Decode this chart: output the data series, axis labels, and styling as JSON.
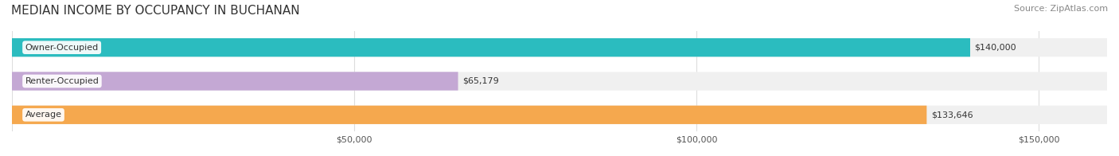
{
  "title": "MEDIAN INCOME BY OCCUPANCY IN BUCHANAN",
  "source": "Source: ZipAtlas.com",
  "categories": [
    "Owner-Occupied",
    "Renter-Occupied",
    "Average"
  ],
  "values": [
    140000,
    65179,
    133646
  ],
  "labels": [
    "$140,000",
    "$65,179",
    "$133,646"
  ],
  "bar_colors": [
    "#2BBCBF",
    "#C4A8D4",
    "#F5A84E"
  ],
  "bar_bg_color": "#F0F0F0",
  "label_bg_color": "#FFFFFF",
  "xlim": [
    0,
    160000
  ],
  "xticks": [
    0,
    50000,
    100000,
    150000
  ],
  "xtick_labels": [
    "$50,000",
    "$100,000",
    "$150,000"
  ],
  "title_fontsize": 11,
  "source_fontsize": 8,
  "tick_fontsize": 8,
  "bar_label_fontsize": 8,
  "cat_label_fontsize": 8,
  "bar_height": 0.55,
  "background_color": "#FFFFFF",
  "grid_color": "#DDDDDD"
}
